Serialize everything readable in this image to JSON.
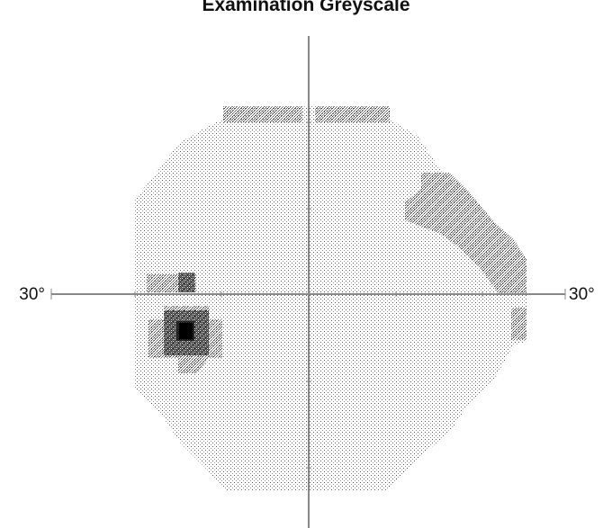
{
  "header": {
    "title": "Examination Greyscale"
  },
  "axis_labels": {
    "left": "30°",
    "right": "30°"
  }
}
